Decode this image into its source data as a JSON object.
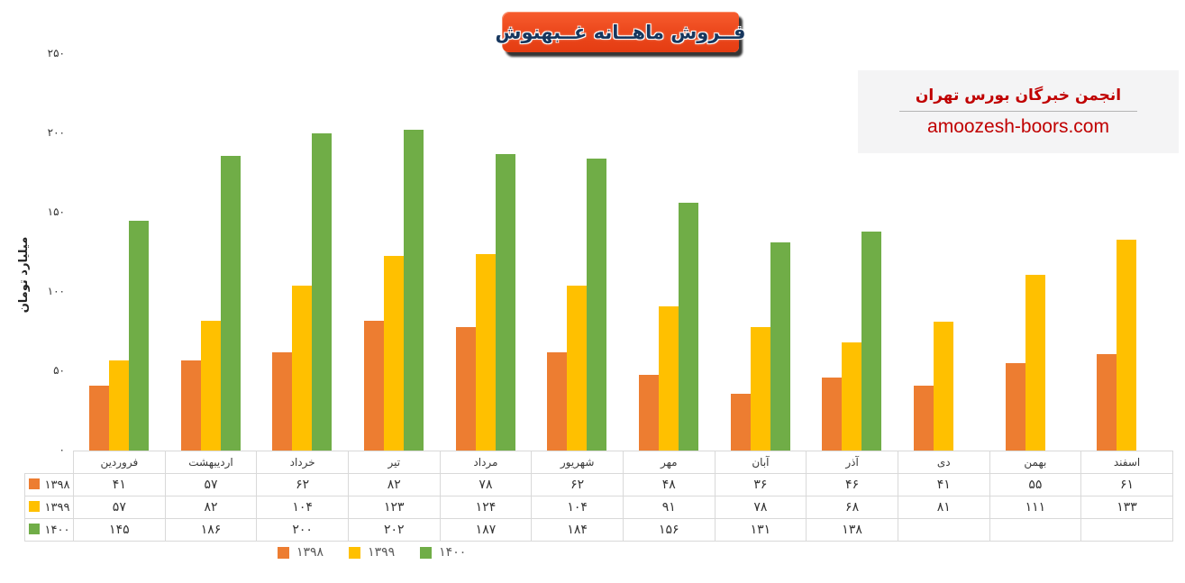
{
  "title_banner": {
    "text": "فــروش ماهــانه غــبهنوش",
    "bg_color": "#ED4A1E",
    "text_color": "#17375E"
  },
  "branding": {
    "heading": "انجمن خبرگان بورس تهران",
    "url": "amoozesh-boors.com",
    "text_color": "#C00000",
    "bg_color": "#F4F4F5"
  },
  "chart_data": {
    "type": "bar",
    "title": "فروش ماهانه غبهنوش",
    "xlabel": "",
    "ylabel": "میلیارد تومان",
    "ylim": [
      0,
      250
    ],
    "ytick_step": 50,
    "ytick_labels_fa": [
      "۰",
      "۵۰",
      "۱۰۰",
      "۱۵۰",
      "۲۰۰",
      "۲۵۰"
    ],
    "grid": false,
    "legend_position": "bottom",
    "data_table_shown": true,
    "categories": [
      "فروردین",
      "اردیبهشت",
      "خرداد",
      "تیر",
      "مرداد",
      "شهریور",
      "مهر",
      "آبان",
      "آذر",
      "دی",
      "بهمن",
      "اسفند"
    ],
    "series": [
      {
        "name": "۱۳۹۸",
        "color": "#ED7D31",
        "values": [
          41,
          57,
          62,
          82,
          78,
          62,
          48,
          36,
          46,
          41,
          55,
          61
        ]
      },
      {
        "name": "۱۳۹۹",
        "color": "#FFC000",
        "values": [
          57,
          82,
          104,
          123,
          124,
          104,
          91,
          78,
          68,
          81,
          111,
          133
        ]
      },
      {
        "name": "۱۴۰۰",
        "color": "#70AD47",
        "values": [
          145,
          186,
          200,
          202,
          187,
          184,
          156,
          131,
          138,
          null,
          null,
          null
        ]
      }
    ]
  },
  "colors": {
    "table_border": "#D9D9D9",
    "axis_text": "#333333",
    "legend_text": "#595959"
  }
}
